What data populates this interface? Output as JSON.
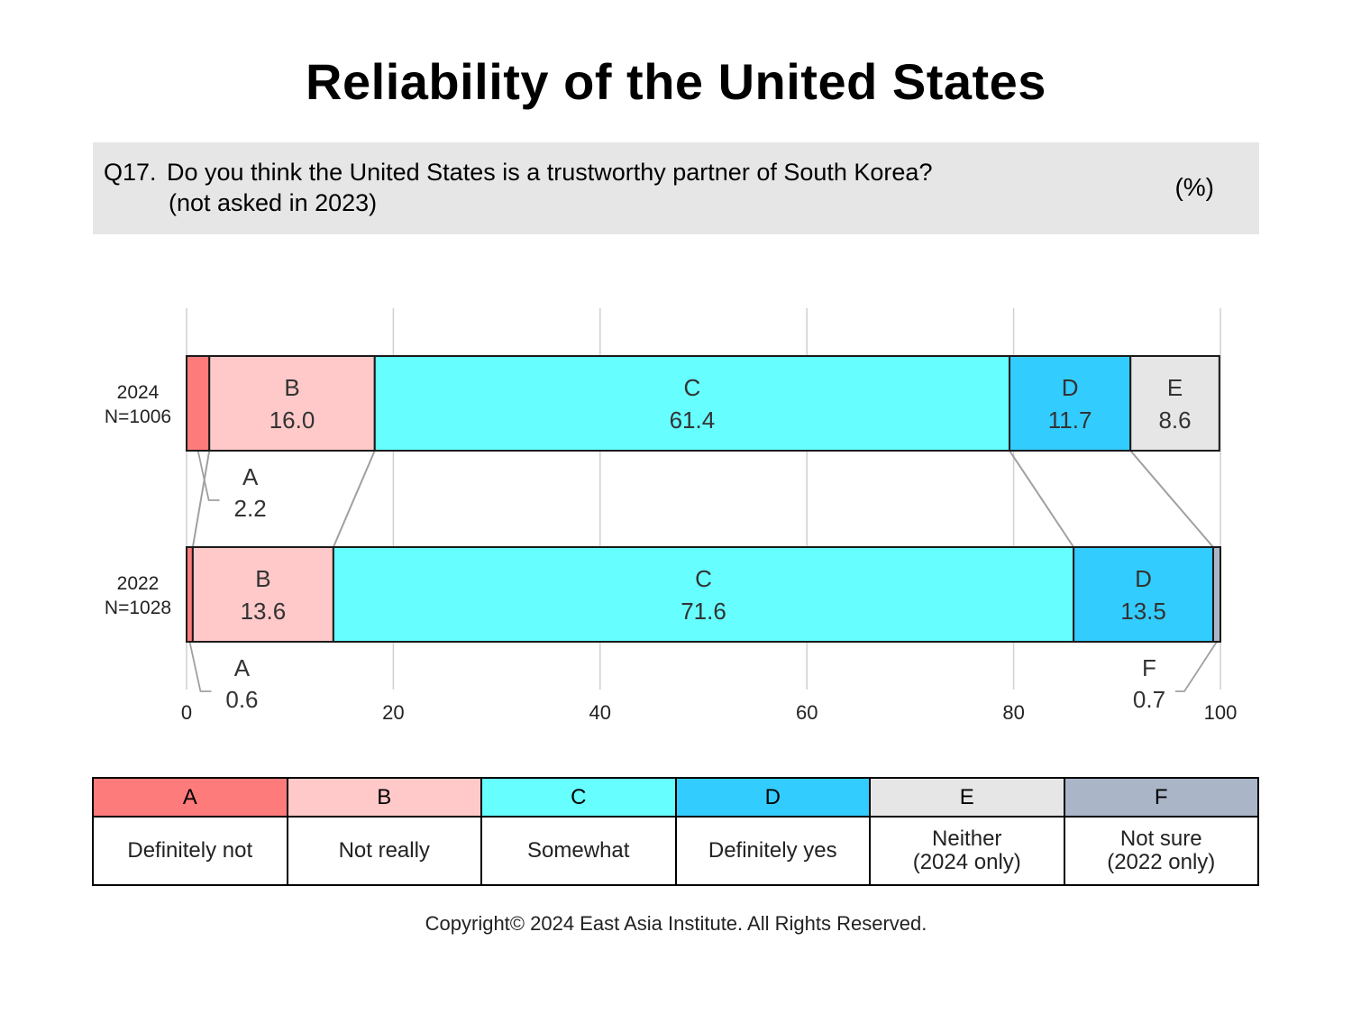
{
  "title": "Reliability of the United States",
  "question": {
    "number": "Q17.",
    "text": "Do you think the United States is a trustworthy partner of South Korea?",
    "note": "(not asked in 2023)",
    "unit": "(%)"
  },
  "chart_data": {
    "type": "bar",
    "orientation": "horizontal",
    "stacked": true,
    "title": "Reliability of the United States",
    "xlim": [
      0,
      100
    ],
    "x_ticks": [
      0,
      20,
      40,
      60,
      80,
      100
    ],
    "grid": true,
    "rows": [
      {
        "label": "2024",
        "n": "N=1006",
        "segments": [
          {
            "key": "A",
            "value": 2.2
          },
          {
            "key": "B",
            "value": 16.0
          },
          {
            "key": "C",
            "value": 61.4
          },
          {
            "key": "D",
            "value": 11.7
          },
          {
            "key": "E",
            "value": 8.6
          }
        ]
      },
      {
        "label": "2022",
        "n": "N=1028",
        "segments": [
          {
            "key": "A",
            "value": 0.6
          },
          {
            "key": "B",
            "value": 13.6
          },
          {
            "key": "C",
            "value": 71.6
          },
          {
            "key": "D",
            "value": 13.5
          },
          {
            "key": "F",
            "value": 0.7
          }
        ]
      }
    ],
    "colors": {
      "A": "#fe7b7c",
      "B": "#ffc9c9",
      "C": "#66feff",
      "D": "#33ccff",
      "E": "#e7e6e7",
      "F": "#abb5c8"
    }
  },
  "legend": [
    {
      "key": "A",
      "label": "Definitely not",
      "color": "#fe7b7c"
    },
    {
      "key": "B",
      "label": "Not really",
      "color": "#ffc9c9"
    },
    {
      "key": "C",
      "label": "Somewhat",
      "color": "#66feff"
    },
    {
      "key": "D",
      "label": "Definitely yes",
      "color": "#33ccff"
    },
    {
      "key": "E",
      "label": "Neither\n(2024 only)",
      "color": "#e7e6e7"
    },
    {
      "key": "F",
      "label": "Not sure\n(2022 only)",
      "color": "#abb5c8"
    }
  ],
  "copyright": "Copyright© 2024 East Asia Institute. All Rights Reserved."
}
